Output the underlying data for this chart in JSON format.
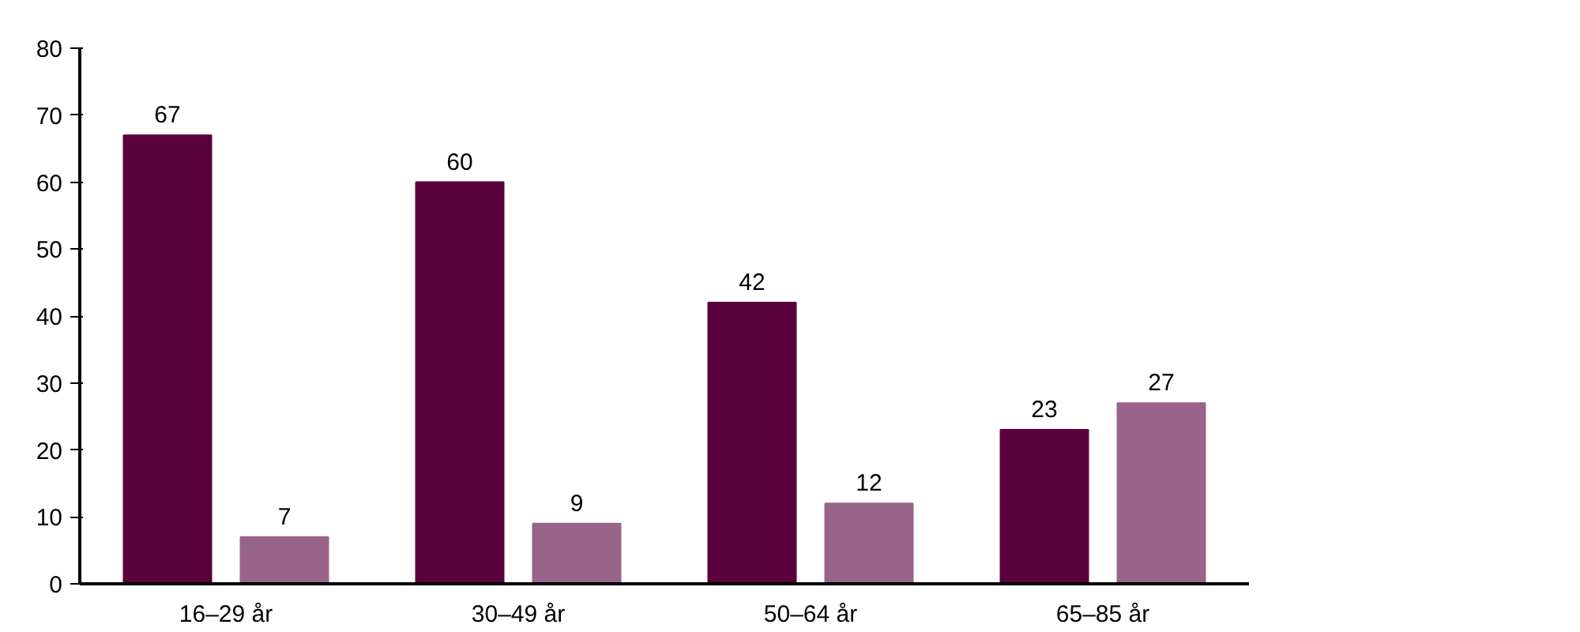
{
  "chart_data": {
    "type": "bar",
    "categories": [
      "16–29 år",
      "30–49 år",
      "50–64 år",
      "65–85 år"
    ],
    "series": [
      {
        "color": "#5a003c",
        "values": [
          67,
          60,
          42,
          23
        ]
      },
      {
        "color": "#98648a",
        "values": [
          7,
          9,
          12,
          27
        ]
      }
    ],
    "ylim": [
      0,
      80
    ],
    "yticks": [
      0,
      10,
      20,
      30,
      40,
      50,
      60,
      70,
      80
    ],
    "data_labels": true,
    "grid": false
  }
}
